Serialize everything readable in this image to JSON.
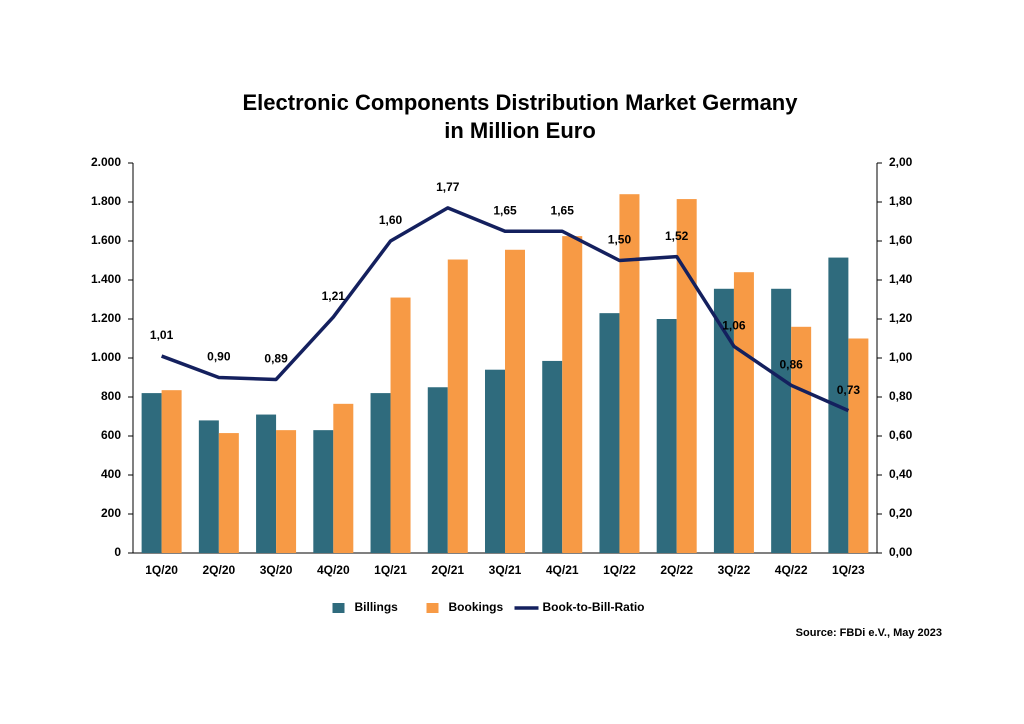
{
  "chart_data": {
    "type": "bar",
    "title": [
      "Electronic Components Distribution Market Germany",
      "in Million Euro"
    ],
    "source": "Source: FBDi e.V., May 2023",
    "categories": [
      "1Q/20",
      "2Q/20",
      "3Q/20",
      "4Q/20",
      "1Q/21",
      "2Q/21",
      "3Q/21",
      "4Q/21",
      "1Q/22",
      "2Q/22",
      "3Q/22",
      "4Q/22",
      "1Q/23"
    ],
    "series": [
      {
        "name": "Billings",
        "type": "bar",
        "color": "#2f6b7d",
        "values": [
          820,
          680,
          710,
          630,
          820,
          850,
          940,
          985,
          1230,
          1200,
          1355,
          1355,
          1515
        ]
      },
      {
        "name": "Bookings",
        "type": "bar",
        "color": "#f79a45",
        "values": [
          835,
          615,
          630,
          765,
          1310,
          1505,
          1555,
          1625,
          1840,
          1815,
          1440,
          1160,
          1100
        ]
      },
      {
        "name": "Book-to-Bill-Ratio",
        "type": "line",
        "axis": "y2",
        "color": "#14205e",
        "values": [
          1.01,
          0.9,
          0.89,
          1.21,
          1.6,
          1.77,
          1.65,
          1.65,
          1.5,
          1.52,
          1.06,
          0.86,
          0.73
        ],
        "value_labels": [
          "1,01",
          "0,90",
          "0,89",
          "1,21",
          "1,60",
          "1,77",
          "1,65",
          "1,65",
          "1,50",
          "1,52",
          "1,06",
          "0,86",
          "0,73"
        ]
      }
    ],
    "ylim": [
      0,
      2000
    ],
    "yticks": [
      0,
      200,
      400,
      600,
      800,
      {
        "value": 1000,
        "label": "1.000"
      },
      {
        "value": 1200,
        "label": "1.200"
      },
      {
        "value": 1400,
        "label": "1.400"
      },
      {
        "value": 1600,
        "label": "1.600"
      },
      {
        "value": 1800,
        "label": "1.800"
      },
      {
        "value": 2000,
        "label": "2.000"
      }
    ],
    "y2lim": [
      0,
      2
    ],
    "y2ticks": [
      {
        "value": 0,
        "label": "0,00"
      },
      {
        "value": 0.2,
        "label": "0,20"
      },
      {
        "value": 0.4,
        "label": "0,40"
      },
      {
        "value": 0.6,
        "label": "0,60"
      },
      {
        "value": 0.8,
        "label": "0,80"
      },
      {
        "value": 1,
        "label": "1,00"
      },
      {
        "value": 1.2,
        "label": "1,20"
      },
      {
        "value": 1.4,
        "label": "1,40"
      },
      {
        "value": 1.6,
        "label": "1,60"
      },
      {
        "value": 1.8,
        "label": "1,80"
      },
      {
        "value": 2,
        "label": "2,00"
      }
    ],
    "grid": false,
    "legend": "bottom"
  }
}
